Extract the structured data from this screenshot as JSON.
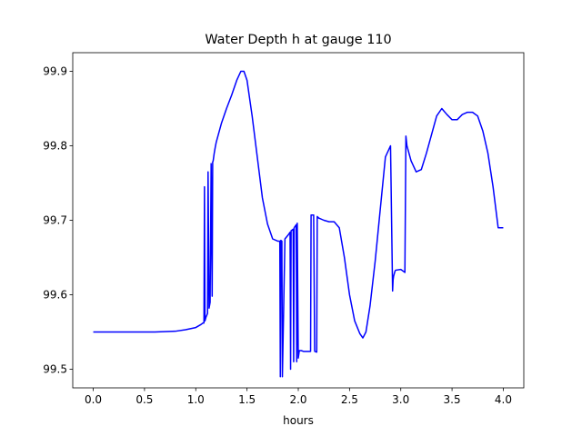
{
  "chart_data": {
    "type": "line",
    "title": "Water Depth h at gauge 110",
    "xlabel": "hours",
    "ylabel": "",
    "xlim": [
      -0.2,
      4.2
    ],
    "ylim": [
      99.475,
      99.925
    ],
    "xticks": [
      0.0,
      0.5,
      1.0,
      1.5,
      2.0,
      2.5,
      3.0,
      3.5,
      4.0
    ],
    "xtick_labels": [
      "0.0",
      "0.5",
      "1.0",
      "1.5",
      "2.0",
      "2.5",
      "3.0",
      "3.5",
      "4.0"
    ],
    "yticks": [
      99.5,
      99.6,
      99.7,
      99.8,
      99.9
    ],
    "ytick_labels": [
      "99.5",
      "99.6",
      "99.7",
      "99.8",
      "99.9"
    ],
    "grid": false,
    "legend": "none",
    "series": [
      {
        "color": "#0000ff",
        "x": [
          0.0,
          0.2,
          0.4,
          0.6,
          0.8,
          0.9,
          1.0,
          1.05,
          1.07,
          1.08,
          1.085,
          1.09,
          1.1,
          1.115,
          1.12,
          1.13,
          1.14,
          1.15,
          1.16,
          1.165,
          1.17,
          1.18,
          1.19,
          1.2,
          1.25,
          1.3,
          1.35,
          1.4,
          1.44,
          1.47,
          1.5,
          1.55,
          1.6,
          1.65,
          1.7,
          1.75,
          1.8,
          1.82,
          1.825,
          1.83,
          1.84,
          1.845,
          1.87,
          1.9,
          1.92,
          1.925,
          1.93,
          1.95,
          1.955,
          1.96,
          1.98,
          1.985,
          1.99,
          2.0,
          2.005,
          2.01,
          2.03,
          2.05,
          2.1,
          2.12,
          2.125,
          2.15,
          2.16,
          2.18,
          2.185,
          2.2,
          2.25,
          2.3,
          2.35,
          2.4,
          2.45,
          2.5,
          2.55,
          2.6,
          2.63,
          2.66,
          2.7,
          2.75,
          2.8,
          2.85,
          2.9,
          2.92,
          2.925,
          2.93,
          2.94,
          2.945,
          2.95,
          3.0,
          3.03,
          3.04,
          3.05,
          3.06,
          3.1,
          3.15,
          3.2,
          3.25,
          3.3,
          3.35,
          3.4,
          3.45,
          3.5,
          3.55,
          3.6,
          3.65,
          3.7,
          3.75,
          3.8,
          3.85,
          3.9,
          3.95,
          4.0
        ],
        "values": [
          99.55,
          99.55,
          99.55,
          99.55,
          99.551,
          99.553,
          99.556,
          99.56,
          99.562,
          99.562,
          99.745,
          99.565,
          99.57,
          99.575,
          99.765,
          99.582,
          99.59,
          99.776,
          99.598,
          99.778,
          99.78,
          99.79,
          99.798,
          99.805,
          99.83,
          99.85,
          99.868,
          99.888,
          99.9,
          99.9,
          99.888,
          99.84,
          99.785,
          99.73,
          99.695,
          99.675,
          99.672,
          99.672,
          99.49,
          99.673,
          99.672,
          99.49,
          99.675,
          99.68,
          99.684,
          99.5,
          99.686,
          99.688,
          99.51,
          99.69,
          99.694,
          99.51,
          99.696,
          99.515,
          99.52,
          99.525,
          99.525,
          99.524,
          99.524,
          99.524,
          99.707,
          99.707,
          99.524,
          99.523,
          99.705,
          99.703,
          99.7,
          99.698,
          99.698,
          99.69,
          99.65,
          99.6,
          99.565,
          99.548,
          99.542,
          99.55,
          99.585,
          99.645,
          99.715,
          99.785,
          99.8,
          99.605,
          99.62,
          99.625,
          99.63,
          99.632,
          99.633,
          99.634,
          99.631,
          99.63,
          99.813,
          99.8,
          99.78,
          99.765,
          99.768,
          99.79,
          99.815,
          99.84,
          99.85,
          99.842,
          99.835,
          99.835,
          99.842,
          99.845,
          99.845,
          99.84,
          99.82,
          99.79,
          99.745,
          99.69,
          99.69
        ]
      }
    ]
  }
}
